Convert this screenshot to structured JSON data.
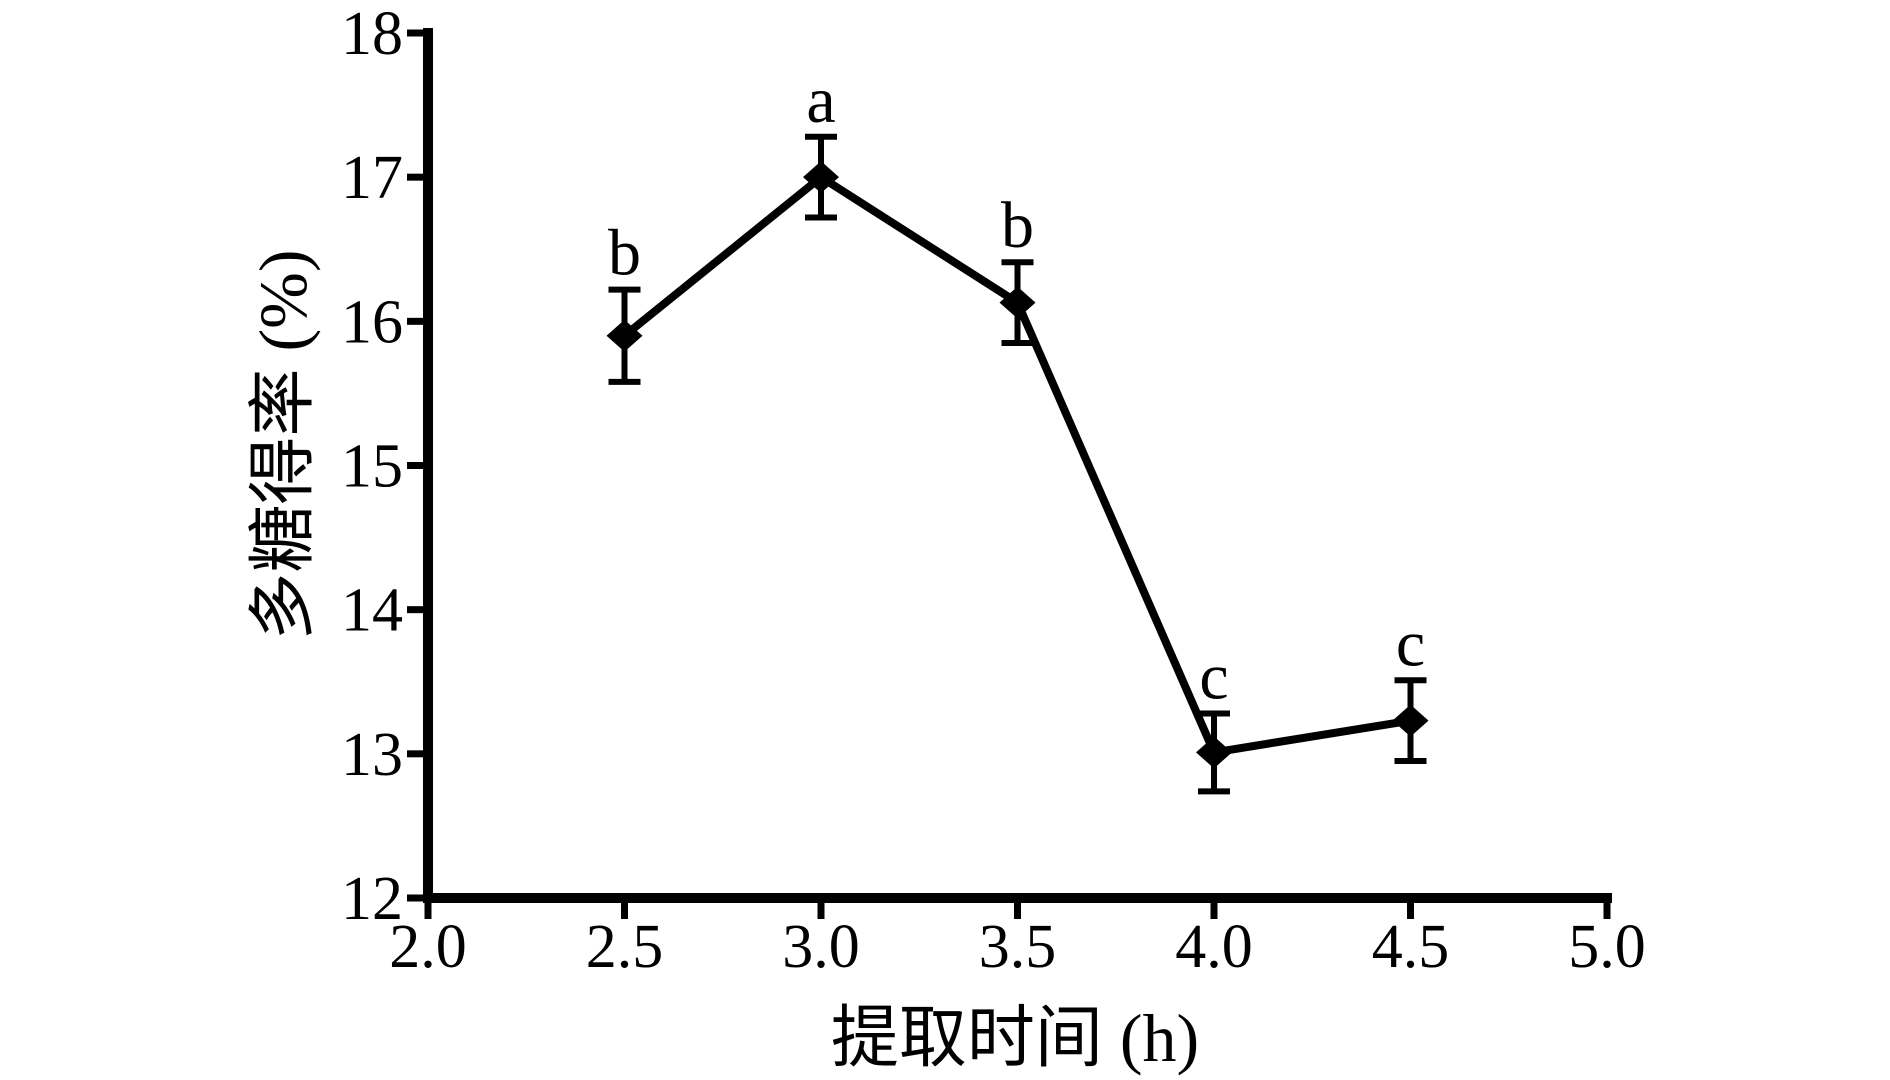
{
  "figure": {
    "background": "#ffffff",
    "ink_color": "#000000"
  },
  "chart_data": {
    "type": "line",
    "title": "",
    "xlabel": "提取时间 (h)",
    "ylabel": "多糖得率 (%)",
    "x": [
      2.5,
      3.0,
      3.5,
      4.0,
      4.5
    ],
    "series": [
      {
        "name": "多糖得率",
        "values": [
          15.9,
          17.0,
          16.13,
          13.01,
          13.23
        ],
        "errors": [
          0.32,
          0.28,
          0.28,
          0.27,
          0.28
        ],
        "point_labels": [
          "b",
          "a",
          "b",
          "c",
          "c"
        ],
        "marker": "diamond",
        "color": "#000000"
      }
    ],
    "xlim": [
      2.0,
      5.0
    ],
    "ylim": [
      12,
      18
    ],
    "x_ticks": [
      "2.0",
      "2.5",
      "3.0",
      "3.5",
      "4.0",
      "4.5",
      "5.0"
    ],
    "y_ticks": [
      "12",
      "13",
      "14",
      "15",
      "16",
      "17",
      "18"
    ],
    "grid": false,
    "legend": "none",
    "error_bars": true
  }
}
